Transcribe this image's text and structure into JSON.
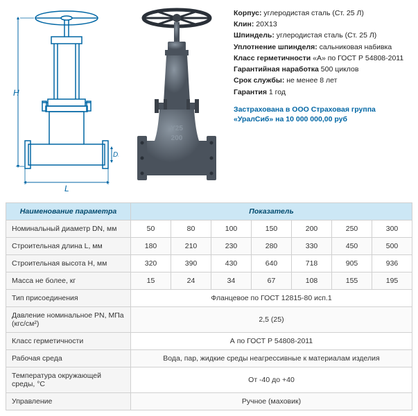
{
  "specs": [
    {
      "label": "Корпус:",
      "value": "углеродистая сталь (Ст. 25 Л)"
    },
    {
      "label": "Клин:",
      "value": "20Х13"
    },
    {
      "label": "Шпиндель:",
      "value": "углеродистая сталь (Ст. 25 Л)"
    },
    {
      "label": "Уплотнение шпинделя:",
      "value": "сальниковая набивка"
    },
    {
      "label": "Класс герметичности",
      "value": "«А» по ГОСТ Р 54808-2011"
    },
    {
      "label": "Гарантийная наработка",
      "value": "500 циклов"
    },
    {
      "label": "Срок службы:",
      "value": "не менее 8 лет"
    },
    {
      "label": "Гарантия",
      "value": "1 год"
    }
  ],
  "insurance": {
    "line1": "Застрахована в ООО Страховая группа",
    "line2": "«УралСиб» на 10 000 000,00 руб"
  },
  "diagram_labels": {
    "H": "H",
    "DN": "DN",
    "L": "L"
  },
  "photo_labels": {
    "model1": "Y25",
    "model2": "200"
  },
  "colors": {
    "diagram_stroke": "#0066a4",
    "table_header_bg": "#cce7f5",
    "table_header_text": "#004a6e",
    "insurance_text": "#0066a4",
    "param_col_bg": "#f5f5f5",
    "border": "#d0d0d0",
    "valve_photo": "#5a6570"
  },
  "table": {
    "header_param": "Наименование параметра",
    "header_value": "Показатель",
    "value_columns": 7,
    "rows": [
      {
        "param": "Номинальный диаметр DN, мм",
        "values": [
          "50",
          "80",
          "100",
          "150",
          "200",
          "250",
          "300"
        ]
      },
      {
        "param": "Строительная длина L, мм",
        "values": [
          "180",
          "210",
          "230",
          "280",
          "330",
          "450",
          "500"
        ]
      },
      {
        "param": "Строительная высота H, мм",
        "values": [
          "320",
          "390",
          "430",
          "640",
          "718",
          "905",
          "936"
        ]
      },
      {
        "param": "Масса не более, кг",
        "values": [
          "15",
          "24",
          "34",
          "67",
          "108",
          "155",
          "195"
        ]
      },
      {
        "param": "Тип присоединения",
        "values": [
          "Фланцевое по ГОСТ 12815-80 исп.1"
        ]
      },
      {
        "param": "Давление номинальное PN, МПа (кгс/см²)",
        "values": [
          "2,5 (25)"
        ]
      },
      {
        "param": "Класс герметичности",
        "values": [
          "А по ГОСТ Р 54808-2011"
        ]
      },
      {
        "param": "Рабочая среда",
        "values": [
          "Вода, пар, жидкие среды неагрессивные к материалам изделия"
        ]
      },
      {
        "param": "Температура окружающей среды, °С",
        "values": [
          "От -40 до +40"
        ]
      },
      {
        "param": "Управление",
        "values": [
          "Ручное (маховик)"
        ]
      }
    ]
  }
}
